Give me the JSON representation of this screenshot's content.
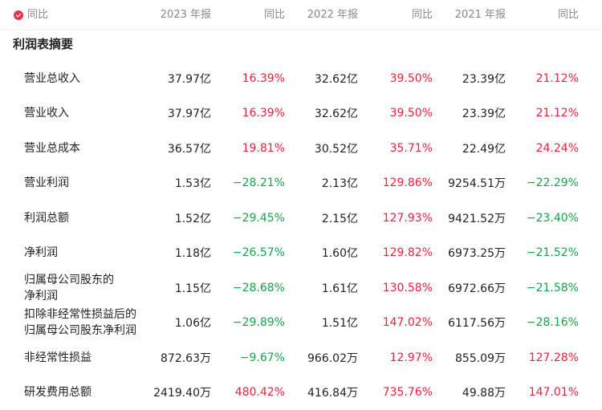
{
  "header": {
    "yoy_toggle_label": "同比",
    "columns": [
      "2023 年报",
      "同比",
      "2022 年报",
      "同比",
      "2021 年报",
      "同比"
    ],
    "accent_color": "#e8334a"
  },
  "section_title": "利润表摘要",
  "rows": [
    {
      "name": "营业总收入",
      "v": [
        "37.97亿",
        "16.39%",
        "32.62亿",
        "39.50%",
        "23.39亿",
        "21.12%"
      ]
    },
    {
      "name": "营业收入",
      "v": [
        "37.97亿",
        "16.39%",
        "32.62亿",
        "39.50%",
        "23.39亿",
        "21.12%"
      ]
    },
    {
      "name": "营业总成本",
      "v": [
        "36.57亿",
        "19.81%",
        "30.52亿",
        "35.71%",
        "22.49亿",
        "24.24%"
      ]
    },
    {
      "name": "营业利润",
      "v": [
        "1.53亿",
        "−28.21%",
        "2.13亿",
        "129.86%",
        "9254.51万",
        "−22.29%"
      ]
    },
    {
      "name": "利润总额",
      "v": [
        "1.52亿",
        "−29.45%",
        "2.15亿",
        "127.93%",
        "9421.52万",
        "−23.40%"
      ]
    },
    {
      "name": "净利润",
      "v": [
        "1.18亿",
        "−26.57%",
        "1.60亿",
        "129.82%",
        "6973.25万",
        "−21.52%"
      ]
    },
    {
      "name": "归属母公司股东的净利润",
      "v": [
        "1.15亿",
        "−28.68%",
        "1.61亿",
        "130.58%",
        "6972.66万",
        "−21.58%"
      ]
    },
    {
      "name": "扣除非经常性损益后的归属母公司股东净利润",
      "v": [
        "1.06亿",
        "−29.89%",
        "1.51亿",
        "147.02%",
        "6117.56万",
        "−28.16%"
      ]
    },
    {
      "name": "非经常性损益",
      "v": [
        "872.63万",
        "−9.67%",
        "966.02万",
        "12.97%",
        "855.09万",
        "127.28%"
      ]
    },
    {
      "name": "研发费用总额",
      "v": [
        "2419.40万",
        "480.42%",
        "416.84万",
        "735.76%",
        "49.88万",
        "147.01%"
      ]
    }
  ]
}
